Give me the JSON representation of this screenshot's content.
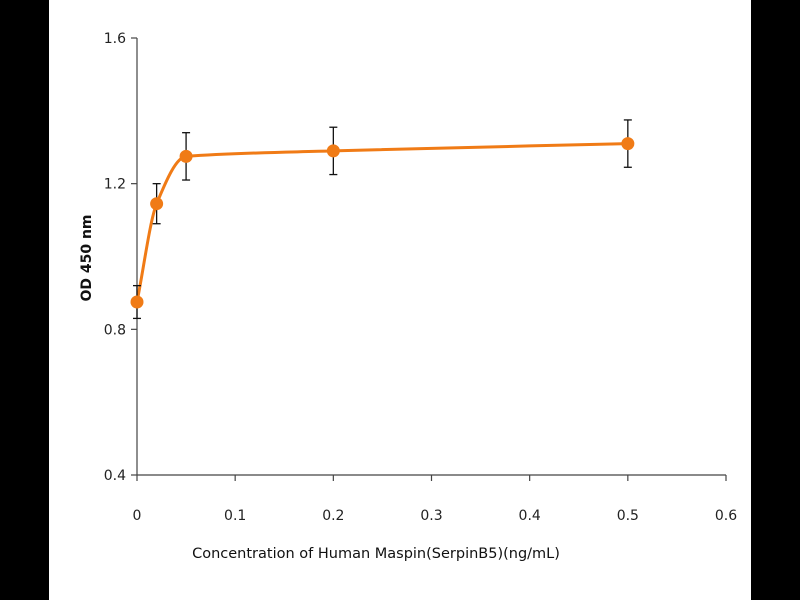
{
  "chart_data": {
    "type": "scatter",
    "title": "",
    "xlabel": "Concentration of Human Maspin(SerpinB5)(ng/mL)",
    "ylabel": "OD 450 nm",
    "xlim": [
      0,
      0.6
    ],
    "ylim": [
      0.4,
      1.6
    ],
    "x_ticks": [
      "0",
      "0.1",
      "0.2",
      "0.3",
      "0.4",
      "0.5",
      "0.6"
    ],
    "y_ticks": [
      "0.4",
      "0.8",
      "1.2",
      "1.6"
    ],
    "grid": false,
    "legend": "none",
    "series": [
      {
        "x": [
          0,
          0.02,
          0.05,
          0.2,
          0.5
        ],
        "y": [
          0.875,
          1.145,
          1.275,
          1.29,
          1.31
        ],
        "error": [
          0.045,
          0.055,
          0.065,
          0.065,
          0.065
        ],
        "color": "#f07b16",
        "line": "smooth"
      }
    ]
  }
}
